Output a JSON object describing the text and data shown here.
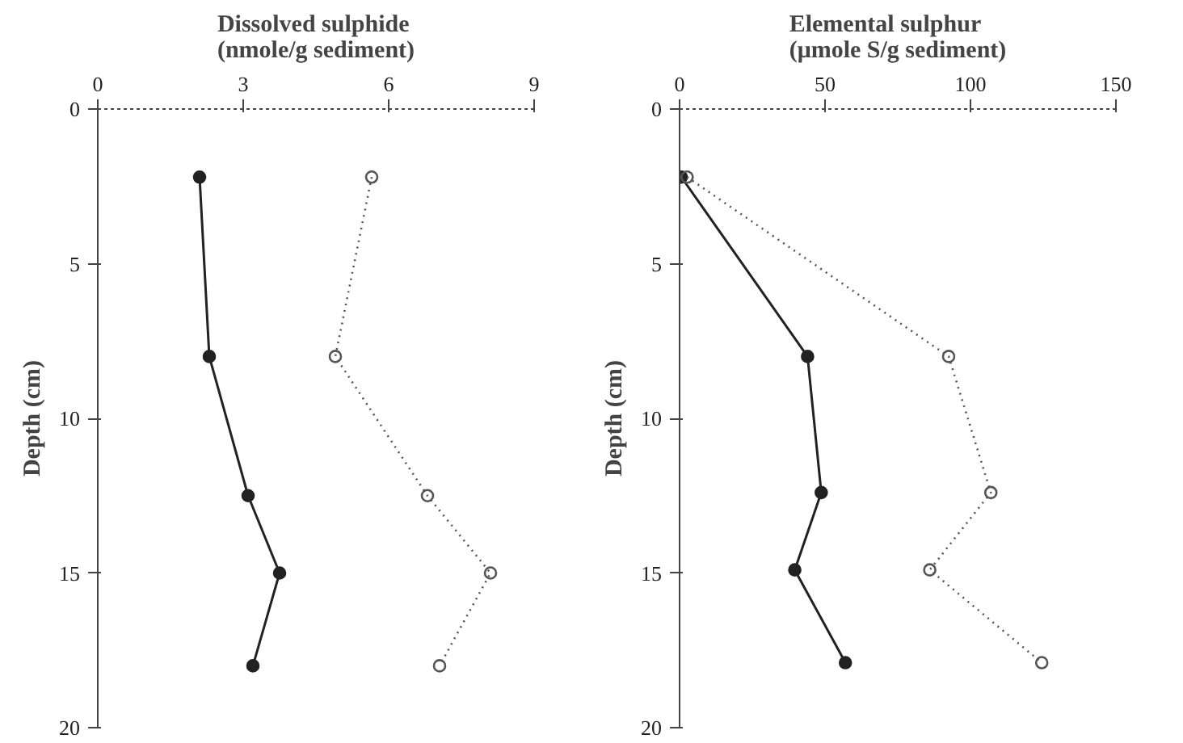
{
  "chart_data": [
    {
      "type": "line",
      "title": "Dissolved sulphide\n(nmole/g sediment)",
      "ylabel": "Depth (cm)",
      "xlim": [
        0,
        9
      ],
      "xticks": [
        0,
        3,
        6,
        9
      ],
      "ylim": [
        20,
        0
      ],
      "yticks": [
        0,
        5,
        10,
        15,
        20
      ],
      "grid": false,
      "marker": "circle",
      "series": [
        {
          "color": "#222222",
          "line_style": "solid",
          "x": [
            2.1,
            2.3,
            3.1,
            3.75,
            3.2
          ],
          "values": [
            2.2,
            8,
            12.5,
            15,
            18
          ]
        },
        {
          "color": "#555555",
          "line_style": "dotted",
          "x": [
            5.65,
            4.9,
            6.8,
            8.1,
            7.05
          ],
          "values": [
            2.2,
            8,
            12.5,
            15,
            18
          ]
        }
      ]
    },
    {
      "type": "line",
      "title": "Elemental sulphur\n(μmole S/g sediment)",
      "ylabel": "Depth (cm)",
      "xlim": [
        0,
        150
      ],
      "xticks": [
        0,
        50,
        100,
        150
      ],
      "ylim": [
        20,
        0
      ],
      "yticks": [
        0,
        5,
        10,
        15,
        20
      ],
      "grid": false,
      "marker": "circle",
      "series": [
        {
          "color": "#222222",
          "line_style": "solid",
          "x": [
            0.6,
            44,
            48.7,
            39.6,
            57
          ],
          "values": [
            2.2,
            8,
            12.4,
            14.9,
            17.9
          ]
        },
        {
          "color": "#555555",
          "line_style": "dotted",
          "x": [
            2.6,
            92.5,
            107,
            86,
            124.5
          ],
          "values": [
            2.2,
            8,
            12.4,
            14.9,
            17.9
          ]
        }
      ]
    }
  ]
}
